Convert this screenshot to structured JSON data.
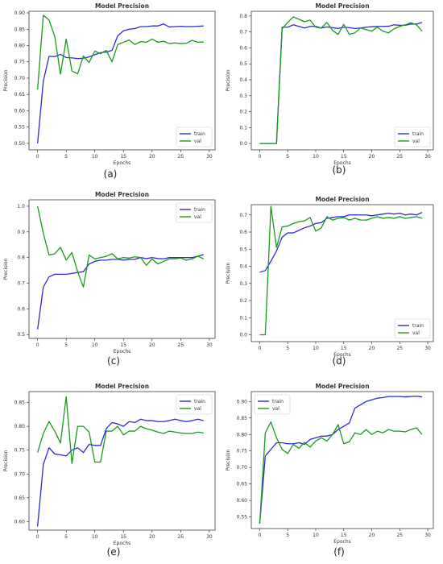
{
  "colors": {
    "train": "#2b2bd6",
    "val": "#1a9a1a"
  },
  "chart_data": [
    {
      "type": "line",
      "title": "Model Precision",
      "xlabel": "Epochs",
      "ylabel": "Precision",
      "panel_label": "(a)",
      "xlim": [
        -1.5,
        31
      ],
      "ylim": [
        0.48,
        0.905
      ],
      "xticks": [
        0,
        5,
        10,
        15,
        20,
        25,
        30
      ],
      "yticks": [
        0.5,
        0.55,
        0.6,
        0.65,
        0.7,
        0.75,
        0.8,
        0.85,
        0.9
      ],
      "ytick_labels": [
        "0.50",
        "0.55",
        "0.60",
        "0.65",
        "0.70",
        "0.75",
        "0.80",
        "0.85",
        "0.90"
      ],
      "legend": "bottom-right",
      "series": [
        {
          "name": "train",
          "color": "train",
          "values": [
            0.5,
            0.69,
            0.767,
            0.766,
            0.773,
            0.763,
            0.762,
            0.76,
            0.761,
            0.765,
            0.772,
            0.778,
            0.78,
            0.785,
            0.83,
            0.845,
            0.85,
            0.852,
            0.858,
            0.858,
            0.86,
            0.86,
            0.866,
            0.857,
            0.858,
            0.859,
            0.858,
            0.858,
            0.859,
            0.86
          ]
        },
        {
          "name": "val",
          "color": "val",
          "values": [
            0.665,
            0.893,
            0.878,
            0.828,
            0.712,
            0.82,
            0.722,
            0.713,
            0.768,
            0.748,
            0.783,
            0.775,
            0.785,
            0.75,
            0.803,
            0.81,
            0.817,
            0.803,
            0.812,
            0.81,
            0.82,
            0.81,
            0.813,
            0.806,
            0.808,
            0.806,
            0.807,
            0.816,
            0.81,
            0.811
          ]
        }
      ]
    },
    {
      "type": "line",
      "title": "Model Precision",
      "xlabel": "Epochs",
      "ylabel": "Precision",
      "panel_label": "(b)",
      "xlim": [
        -1.5,
        31
      ],
      "ylim": [
        -0.04,
        0.83
      ],
      "xticks": [
        0,
        5,
        10,
        15,
        20,
        25,
        30
      ],
      "yticks": [
        0.0,
        0.1,
        0.2,
        0.3,
        0.4,
        0.5,
        0.6,
        0.7,
        0.8
      ],
      "ytick_labels": [
        "0.0",
        "0.1",
        "0.2",
        "0.3",
        "0.4",
        "0.5",
        "0.6",
        "0.7",
        "0.8"
      ],
      "legend": "bottom-right",
      "series": [
        {
          "name": "train",
          "color": "train",
          "values": [
            0,
            0,
            0,
            0,
            0.73,
            0.73,
            0.745,
            0.735,
            0.725,
            0.735,
            0.735,
            0.725,
            0.732,
            0.727,
            0.722,
            0.73,
            0.727,
            0.722,
            0.725,
            0.73,
            0.733,
            0.735,
            0.735,
            0.736,
            0.745,
            0.742,
            0.742,
            0.75,
            0.75,
            0.76
          ]
        },
        {
          "name": "val",
          "color": "val",
          "values": [
            0,
            0,
            0,
            0,
            0.72,
            0.76,
            0.795,
            0.78,
            0.765,
            0.775,
            0.73,
            0.725,
            0.76,
            0.71,
            0.685,
            0.748,
            0.685,
            0.695,
            0.725,
            0.715,
            0.705,
            0.73,
            0.705,
            0.695,
            0.72,
            0.735,
            0.745,
            0.758,
            0.745,
            0.705
          ]
        }
      ]
    },
    {
      "type": "line",
      "title": "Model Precision",
      "xlabel": "Epochs",
      "ylabel": "Precision",
      "panel_label": "(c)",
      "xlim": [
        -1.5,
        31
      ],
      "ylim": [
        0.485,
        1.025
      ],
      "xticks": [
        0,
        5,
        10,
        15,
        20,
        25,
        30
      ],
      "yticks": [
        0.5,
        0.6,
        0.7,
        0.8,
        0.9,
        1.0
      ],
      "ytick_labels": [
        "0.5",
        "0.6",
        "0.7",
        "0.8",
        "0.9",
        "1.0"
      ],
      "legend": "top-right",
      "series": [
        {
          "name": "train",
          "color": "train",
          "values": [
            0.52,
            0.685,
            0.725,
            0.735,
            0.735,
            0.735,
            0.738,
            0.742,
            0.745,
            0.775,
            0.785,
            0.79,
            0.79,
            0.793,
            0.793,
            0.79,
            0.793,
            0.793,
            0.8,
            0.796,
            0.8,
            0.796,
            0.795,
            0.8,
            0.8,
            0.8,
            0.8,
            0.8,
            0.805,
            0.812
          ]
        },
        {
          "name": "val",
          "color": "val",
          "values": [
            1.0,
            0.895,
            0.81,
            0.815,
            0.84,
            0.79,
            0.82,
            0.745,
            0.685,
            0.81,
            0.795,
            0.8,
            0.805,
            0.815,
            0.795,
            0.8,
            0.798,
            0.803,
            0.8,
            0.77,
            0.795,
            0.775,
            0.785,
            0.795,
            0.795,
            0.798,
            0.79,
            0.795,
            0.805,
            0.795
          ]
        }
      ]
    },
    {
      "type": "line",
      "title": "Model Precision",
      "xlabel": "Epochs",
      "ylabel": "Precision",
      "panel_label": "(d)",
      "xlim": [
        -1.5,
        31
      ],
      "ylim": [
        -0.04,
        0.76
      ],
      "xticks": [
        0,
        5,
        10,
        15,
        20,
        25,
        30
      ],
      "yticks": [
        0.0,
        0.1,
        0.2,
        0.3,
        0.4,
        0.5,
        0.6,
        0.7
      ],
      "ytick_labels": [
        "0.0",
        "0.1",
        "0.2",
        "0.3",
        "0.4",
        "0.5",
        "0.6",
        "0.7"
      ],
      "legend": "bottom-right",
      "series": [
        {
          "name": "train",
          "color": "train",
          "values": [
            0.365,
            0.375,
            0.43,
            0.49,
            0.57,
            0.595,
            0.595,
            0.61,
            0.625,
            0.635,
            0.65,
            0.655,
            0.68,
            0.685,
            0.69,
            0.69,
            0.7,
            0.7,
            0.7,
            0.7,
            0.695,
            0.7,
            0.705,
            0.71,
            0.705,
            0.71,
            0.7,
            0.705,
            0.7,
            0.715
          ]
        },
        {
          "name": "val",
          "color": "val",
          "values": [
            0.0,
            0.0,
            0.75,
            0.51,
            0.63,
            0.635,
            0.65,
            0.66,
            0.665,
            0.685,
            0.605,
            0.625,
            0.69,
            0.67,
            0.68,
            0.685,
            0.67,
            0.68,
            0.67,
            0.67,
            0.68,
            0.69,
            0.68,
            0.685,
            0.68,
            0.69,
            0.68,
            0.685,
            0.69,
            0.68
          ]
        }
      ]
    },
    {
      "type": "line",
      "title": "Model Precision",
      "xlabel": "Epochs",
      "ylabel": "Precision",
      "panel_label": "(e)",
      "xlim": [
        -1.5,
        31
      ],
      "ylim": [
        0.582,
        0.873
      ],
      "xticks": [
        0,
        5,
        10,
        15,
        20,
        25,
        30
      ],
      "yticks": [
        0.6,
        0.65,
        0.7,
        0.75,
        0.8,
        0.85
      ],
      "ytick_labels": [
        "0.60",
        "0.65",
        "0.70",
        "0.75",
        "0.80",
        "0.85"
      ],
      "legend": "top-right",
      "series": [
        {
          "name": "train",
          "color": "train",
          "values": [
            0.59,
            0.72,
            0.755,
            0.742,
            0.74,
            0.738,
            0.75,
            0.755,
            0.745,
            0.762,
            0.76,
            0.76,
            0.795,
            0.808,
            0.805,
            0.8,
            0.81,
            0.808,
            0.815,
            0.812,
            0.812,
            0.81,
            0.81,
            0.812,
            0.815,
            0.812,
            0.81,
            0.812,
            0.815,
            0.812
          ]
        },
        {
          "name": "val",
          "color": "val",
          "values": [
            0.745,
            0.785,
            0.81,
            0.79,
            0.765,
            0.862,
            0.722,
            0.8,
            0.8,
            0.788,
            0.725,
            0.725,
            0.79,
            0.79,
            0.8,
            0.782,
            0.79,
            0.79,
            0.8,
            0.795,
            0.792,
            0.788,
            0.785,
            0.79,
            0.788,
            0.786,
            0.785,
            0.785,
            0.788,
            0.786
          ]
        }
      ]
    },
    {
      "type": "line",
      "title": "Model Precision",
      "xlabel": "Epochs",
      "ylabel": "Precision",
      "panel_label": "(f)",
      "xlim": [
        -1.5,
        31
      ],
      "ylim": [
        0.515,
        0.93
      ],
      "xticks": [
        0,
        5,
        10,
        15,
        20,
        25,
        30
      ],
      "yticks": [
        0.55,
        0.6,
        0.65,
        0.7,
        0.75,
        0.8,
        0.85,
        0.9
      ],
      "ytick_labels": [
        "0.55",
        "0.60",
        "0.65",
        "0.70",
        "0.75",
        "0.80",
        "0.85",
        "0.90"
      ],
      "legend": "top-left",
      "series": [
        {
          "name": "train",
          "color": "train",
          "values": [
            0.53,
            0.735,
            0.755,
            0.775,
            0.775,
            0.772,
            0.772,
            0.775,
            0.77,
            0.785,
            0.79,
            0.795,
            0.795,
            0.8,
            0.815,
            0.825,
            0.835,
            0.88,
            0.89,
            0.9,
            0.905,
            0.91,
            0.912,
            0.915,
            0.915,
            0.915,
            0.914,
            0.915,
            0.916,
            0.914
          ]
        },
        {
          "name": "val",
          "color": "val",
          "values": [
            0.53,
            0.805,
            0.838,
            0.79,
            0.755,
            0.742,
            0.77,
            0.758,
            0.776,
            0.762,
            0.78,
            0.79,
            0.78,
            0.8,
            0.83,
            0.772,
            0.778,
            0.805,
            0.8,
            0.815,
            0.8,
            0.81,
            0.805,
            0.815,
            0.81,
            0.81,
            0.808,
            0.815,
            0.82,
            0.8
          ]
        }
      ]
    }
  ]
}
